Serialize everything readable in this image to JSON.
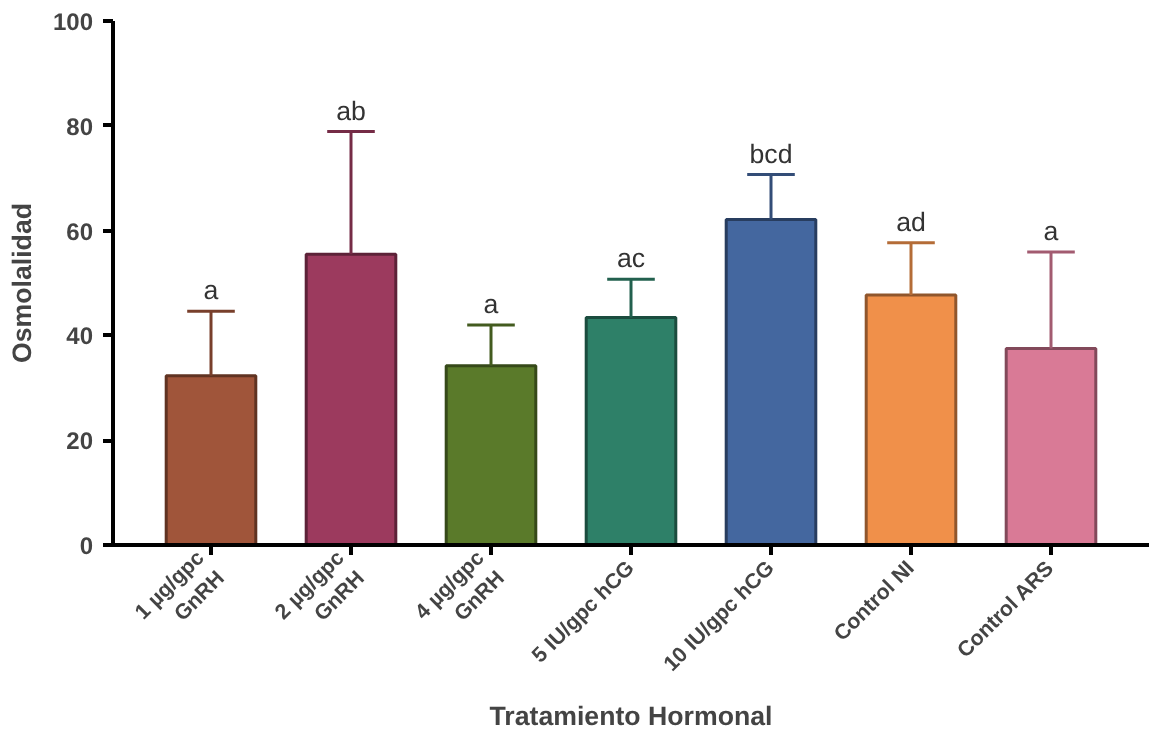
{
  "chart_data": {
    "type": "bar",
    "xlabel": "Tratamiento Hormonal",
    "ylabel": "Osmolalidad",
    "categories": [
      "1 µg/gpc\nGnRH",
      "2 µg/gpc\nGnRH",
      "4 µg/gpc\nGnRH",
      "5 IU/gpc hCG",
      "10 IU/gpc hCG",
      "Control NI",
      "Control ARS"
    ],
    "values": [
      32.3,
      55.5,
      34.2,
      43.4,
      62.1,
      47.7,
      37.5
    ],
    "errors": [
      [
        32.3,
        44.6
      ],
      [
        55.5,
        78.9
      ],
      [
        34.2,
        42.0
      ],
      [
        43.4,
        50.7
      ],
      [
        62.1,
        70.7
      ],
      [
        47.7,
        57.7
      ],
      [
        37.5,
        55.9
      ]
    ],
    "colors": [
      "#a0553a",
      "#9c3a5e",
      "#5a7a2a",
      "#2e8068",
      "#44679f",
      "#f0904a",
      "#d97a96"
    ],
    "ylim": [
      0,
      100
    ],
    "yticks": [
      0,
      20,
      40,
      60,
      80,
      100
    ],
    "grid": false,
    "annotations": [
      {
        "text": "a",
        "x": "1 µg/gpc\nGnRH",
        "y": 44.6
      },
      {
        "text": "ab",
        "x": "2 µg/gpc\nGnRH",
        "y": 78.9
      },
      {
        "text": "a",
        "x": "4 µg/gpc\nGnRH",
        "y": 42.0
      },
      {
        "text": "ac",
        "x": "5 IU/gpc hCG",
        "y": 50.7
      },
      {
        "text": "bcd",
        "x": "10 IU/gpc hCG",
        "y": 70.7
      },
      {
        "text": "ad",
        "x": "Control NI",
        "y": 57.7
      },
      {
        "text": "a",
        "x": "Control ARS",
        "y": 55.9
      }
    ]
  }
}
